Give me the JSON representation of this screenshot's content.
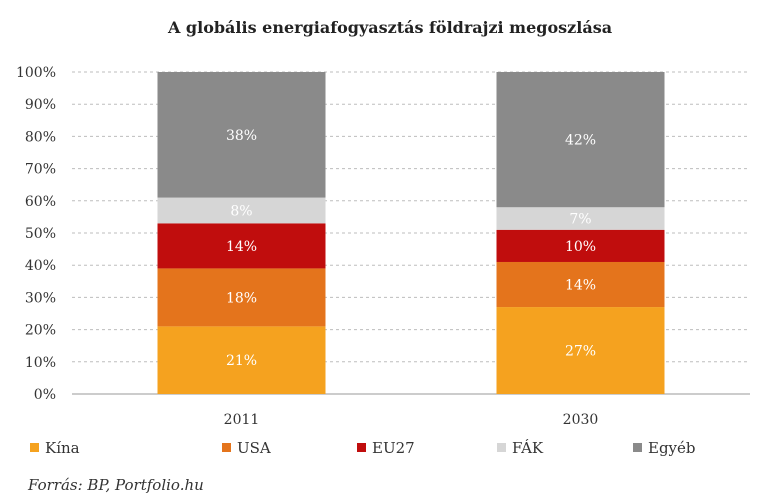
{
  "chart_data": {
    "type": "bar",
    "stacked": true,
    "title": "A globális energiafogyasztás földrajzi megoszlása",
    "categories": [
      "2011",
      "2030"
    ],
    "series": [
      {
        "name": "Kína",
        "color": "#f5a21f",
        "values": [
          21,
          27
        ],
        "labels": [
          "21%",
          "27%"
        ]
      },
      {
        "name": "USA",
        "color": "#e4741c",
        "values": [
          18,
          14
        ],
        "labels": [
          "18%",
          "14%"
        ]
      },
      {
        "name": "EU27",
        "color": "#c00d0d",
        "values": [
          14,
          10
        ],
        "labels": [
          "14%",
          "10%"
        ]
      },
      {
        "name": "FÁK",
        "color": "#d6d6d6",
        "values": [
          8,
          7
        ],
        "labels": [
          "8%",
          "7%"
        ]
      },
      {
        "name": "Egyéb",
        "color": "#8a8a8a",
        "values": [
          38,
          42
        ],
        "labels": [
          "38%",
          "42%"
        ]
      }
    ],
    "yticks": [
      "0%",
      "10%",
      "20%",
      "30%",
      "40%",
      "50%",
      "60%",
      "70%",
      "80%",
      "90%",
      "100%"
    ],
    "ylim": [
      0,
      100
    ],
    "xlabel": "",
    "ylabel": "",
    "legend_position": "bottom",
    "grid": true
  },
  "source": "Forrás: BP, Portfolio.hu"
}
